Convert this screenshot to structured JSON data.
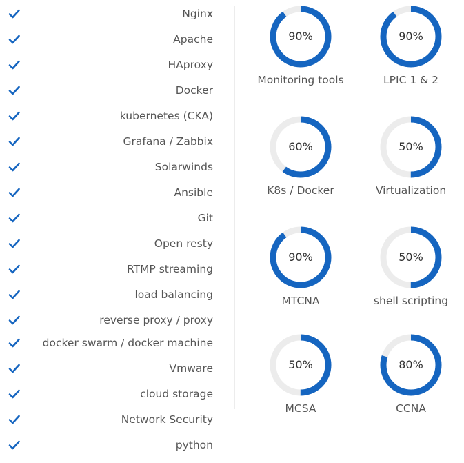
{
  "colors": {
    "accent": "#1565c0",
    "track": "#ececec",
    "text": "#555555"
  },
  "skills": {
    "icon": "check-icon",
    "items": [
      {
        "label": "Nginx"
      },
      {
        "label": "Apache"
      },
      {
        "label": "HAproxy"
      },
      {
        "label": "Docker"
      },
      {
        "label": "kubernetes (CKA)"
      },
      {
        "label": "Grafana / Zabbix"
      },
      {
        "label": "Solarwinds"
      },
      {
        "label": "Ansible"
      },
      {
        "label": "Git"
      },
      {
        "label": "Open resty"
      },
      {
        "label": "RTMP streaming"
      },
      {
        "label": "load balancing"
      },
      {
        "label": "reverse proxy / proxy"
      },
      {
        "label": "docker swarm / docker machine"
      },
      {
        "label": "Vmware"
      },
      {
        "label": "cloud storage"
      },
      {
        "label": "Network Security"
      },
      {
        "label": "python"
      }
    ]
  },
  "gauges": [
    {
      "label": "Monitoring tools",
      "percent": 90,
      "percent_text": "90%"
    },
    {
      "label": "LPIC 1 & 2",
      "percent": 90,
      "percent_text": "90%"
    },
    {
      "label": "K8s / Docker",
      "percent": 60,
      "percent_text": "60%"
    },
    {
      "label": "Virtualization",
      "percent": 50,
      "percent_text": "50%"
    },
    {
      "label": "MTCNA",
      "percent": 90,
      "percent_text": "90%"
    },
    {
      "label": "shell scripting",
      "percent": 50,
      "percent_text": "50%"
    },
    {
      "label": "MCSA",
      "percent": 50,
      "percent_text": "50%"
    },
    {
      "label": "CCNA",
      "percent": 80,
      "percent_text": "80%"
    }
  ]
}
